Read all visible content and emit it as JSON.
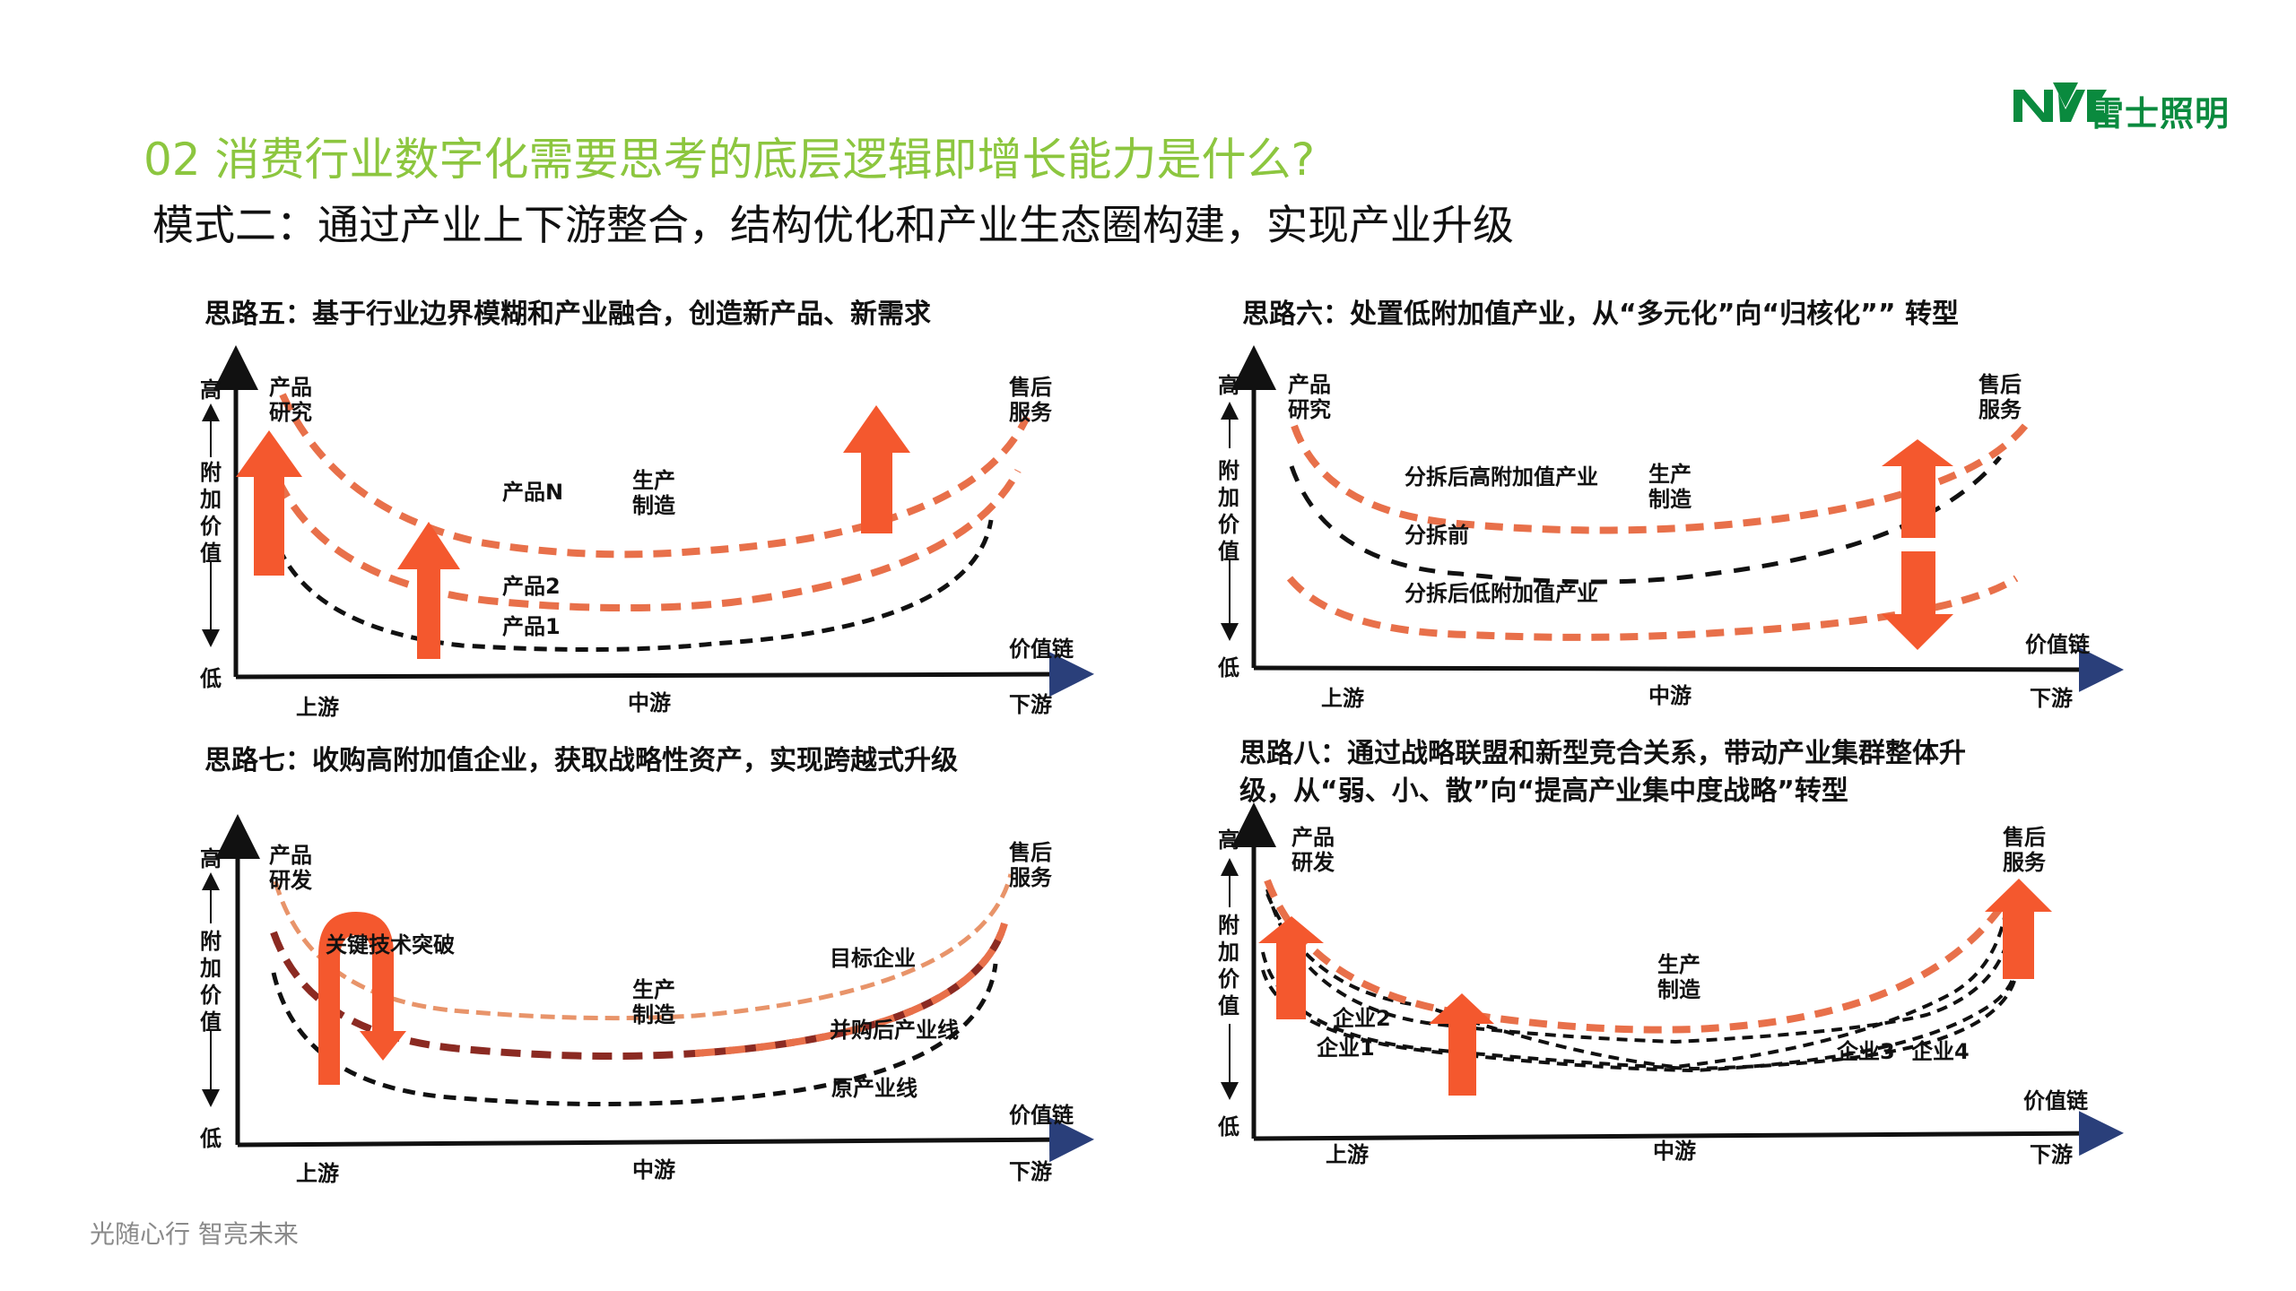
{
  "brand": {
    "logo_mark": "NVC",
    "logo_text": "雷士照明",
    "brand_color": "#0a8a3e"
  },
  "header": {
    "title": "02 消费行业数字化需要思考的底层逻辑即增长能力是什么?",
    "subtitle": "模式二：通过产业上下游整合，结构优化和产业生态圈构建，实现产业升级",
    "title_color": "#8cc63f"
  },
  "common": {
    "y_high": "高",
    "y_low": "低",
    "y_label": [
      "附",
      "加",
      "价",
      "值"
    ],
    "x_label": "价值链",
    "x_ticks": [
      "上游",
      "中游",
      "下游"
    ],
    "mid_label": [
      "生产",
      "制造"
    ],
    "right_label": [
      "售后",
      "服务"
    ],
    "arrow_color": "#f4582e",
    "curve_orange": "#e8704a",
    "curve_black": "#111111",
    "curve_darkred": "#8b2a22"
  },
  "panels": [
    {
      "title": "思路五：基于行业边界模糊和产业融合，创造新产品、新需求",
      "left_label": [
        "产品",
        "研究"
      ],
      "curve_labels": [
        "产品N",
        "产品2",
        "产品1"
      ]
    },
    {
      "title": "思路六：处置低附加值产业，从“多元化”向“归核化”” 转型",
      "left_label": [
        "产品",
        "研究"
      ],
      "curve_labels": [
        "分拆后高附加值产业",
        "分拆前",
        "分拆后低附加值产业"
      ]
    },
    {
      "title": "思路七：收购高附加值企业，获取战略性资产，实现跨越式升级",
      "left_label": [
        "产品",
        "研发"
      ],
      "curve_labels": [
        "关键技术突破",
        "目标企业",
        "并购后产业线",
        "原产业线"
      ]
    },
    {
      "title_lines": [
        "思路八：通过战略联盟和新型竞合关系，带动产业集群整体升",
        "级，从“弱、小、散”向“提高产业集中度战略”转型"
      ],
      "left_label": [
        "产品",
        "研发"
      ],
      "curve_labels": [
        "企业2",
        "企业1",
        "企业3",
        "企业4"
      ]
    }
  ],
  "footer": {
    "slogan": "光随心行   智亮未来"
  }
}
